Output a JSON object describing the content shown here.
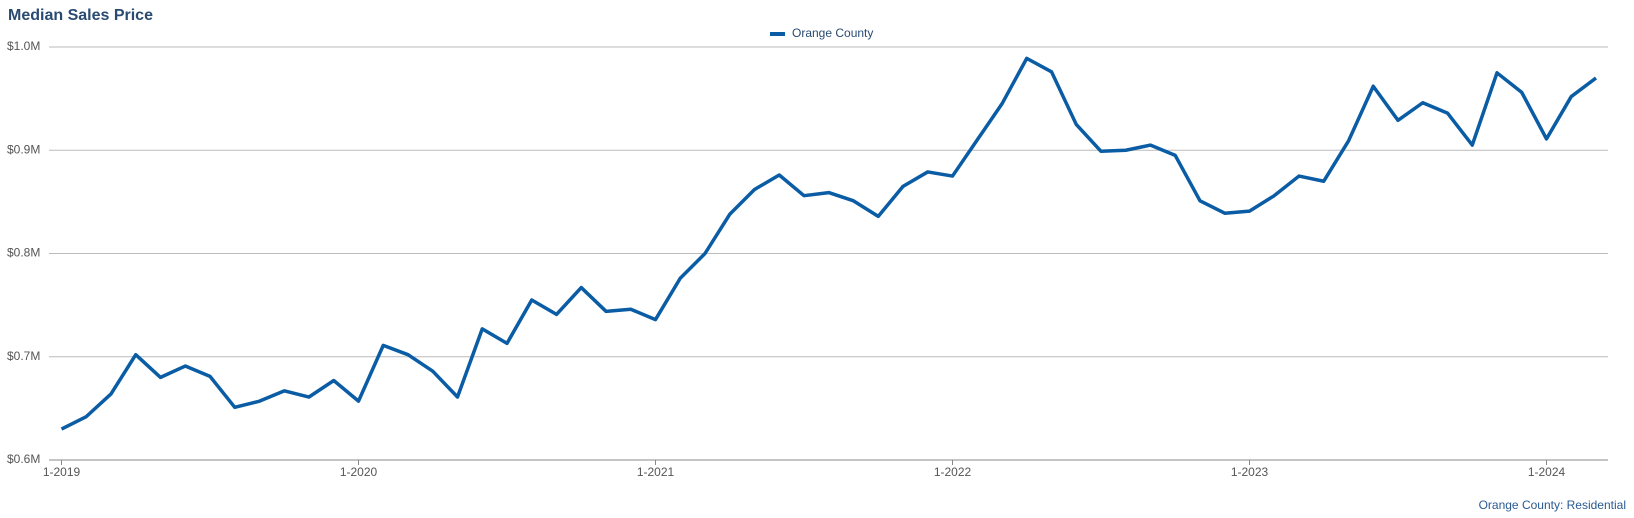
{
  "chart_data": {
    "type": "line",
    "title": "Median Sales Price",
    "source": "Orange County: Residential",
    "categories": [
      "1-2019",
      null,
      null,
      null,
      null,
      null,
      null,
      null,
      null,
      null,
      null,
      null,
      "1-2020",
      null,
      null,
      null,
      null,
      null,
      null,
      null,
      null,
      null,
      null,
      null,
      "1-2021",
      null,
      null,
      null,
      null,
      null,
      null,
      null,
      null,
      null,
      null,
      null,
      "1-2022",
      null,
      null,
      null,
      null,
      null,
      null,
      null,
      null,
      null,
      null,
      null,
      "1-2023",
      null,
      null,
      null,
      null,
      null,
      null,
      null,
      null,
      null,
      null,
      null,
      "1-2024",
      null,
      null
    ],
    "series": [
      {
        "name": "Orange County",
        "color": "#0a5ca4",
        "values": [
          630000,
          642000,
          664000,
          702000,
          680000,
          691000,
          681000,
          651000,
          657000,
          667000,
          661000,
          677000,
          657000,
          711000,
          702000,
          686000,
          661000,
          727000,
          713000,
          755000,
          741000,
          767000,
          744000,
          746000,
          736000,
          776000,
          800000,
          838000,
          862000,
          876000,
          856000,
          859000,
          851000,
          836000,
          865000,
          879000,
          875000,
          910000,
          945000,
          989000,
          976000,
          925000,
          899000,
          900000,
          905000,
          895000,
          851000,
          839000,
          841000,
          856000,
          875000,
          870000,
          909000,
          962000,
          929000,
          946000,
          936000,
          905000,
          975000,
          956000,
          911000,
          952000,
          970000
        ]
      }
    ],
    "ylim": [
      600000,
      1000000
    ],
    "yticks": [
      {
        "value": 600000,
        "label": "$0.6M"
      },
      {
        "value": 700000,
        "label": "$0.7M"
      },
      {
        "value": 800000,
        "label": "$0.8M"
      },
      {
        "value": 900000,
        "label": "$0.9M"
      },
      {
        "value": 1000000,
        "label": "$1.0M"
      }
    ],
    "grid": true,
    "legend": "top"
  }
}
